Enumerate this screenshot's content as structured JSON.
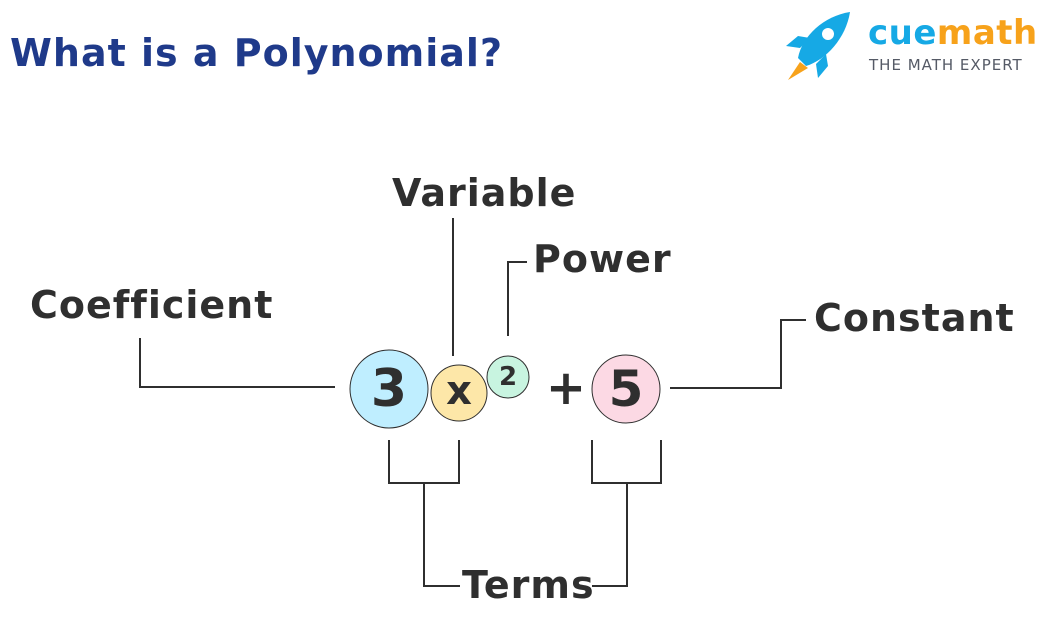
{
  "title": "What is a Polynomial?",
  "logo": {
    "brand_part1": "cue",
    "brand_part2": "math",
    "tagline": "THE MATH EXPERT",
    "icon": "rocket-icon",
    "colors": {
      "blue": "#16a9e5",
      "orange": "#f7a21b"
    }
  },
  "expression": {
    "coefficient": "3",
    "variable": "x",
    "exponent": "2",
    "operator": "+",
    "constant": "5"
  },
  "labels": {
    "variable": "Variable",
    "power": "Power",
    "coefficient": "Coefficient",
    "constant": "Constant",
    "terms": "Terms"
  },
  "colors": {
    "coefficient_circle": "#bfeeff",
    "variable_circle": "#fde7a8",
    "exponent_circle": "#c8f4e0",
    "constant_circle": "#fcd9e4",
    "title": "#1f3a8a"
  }
}
